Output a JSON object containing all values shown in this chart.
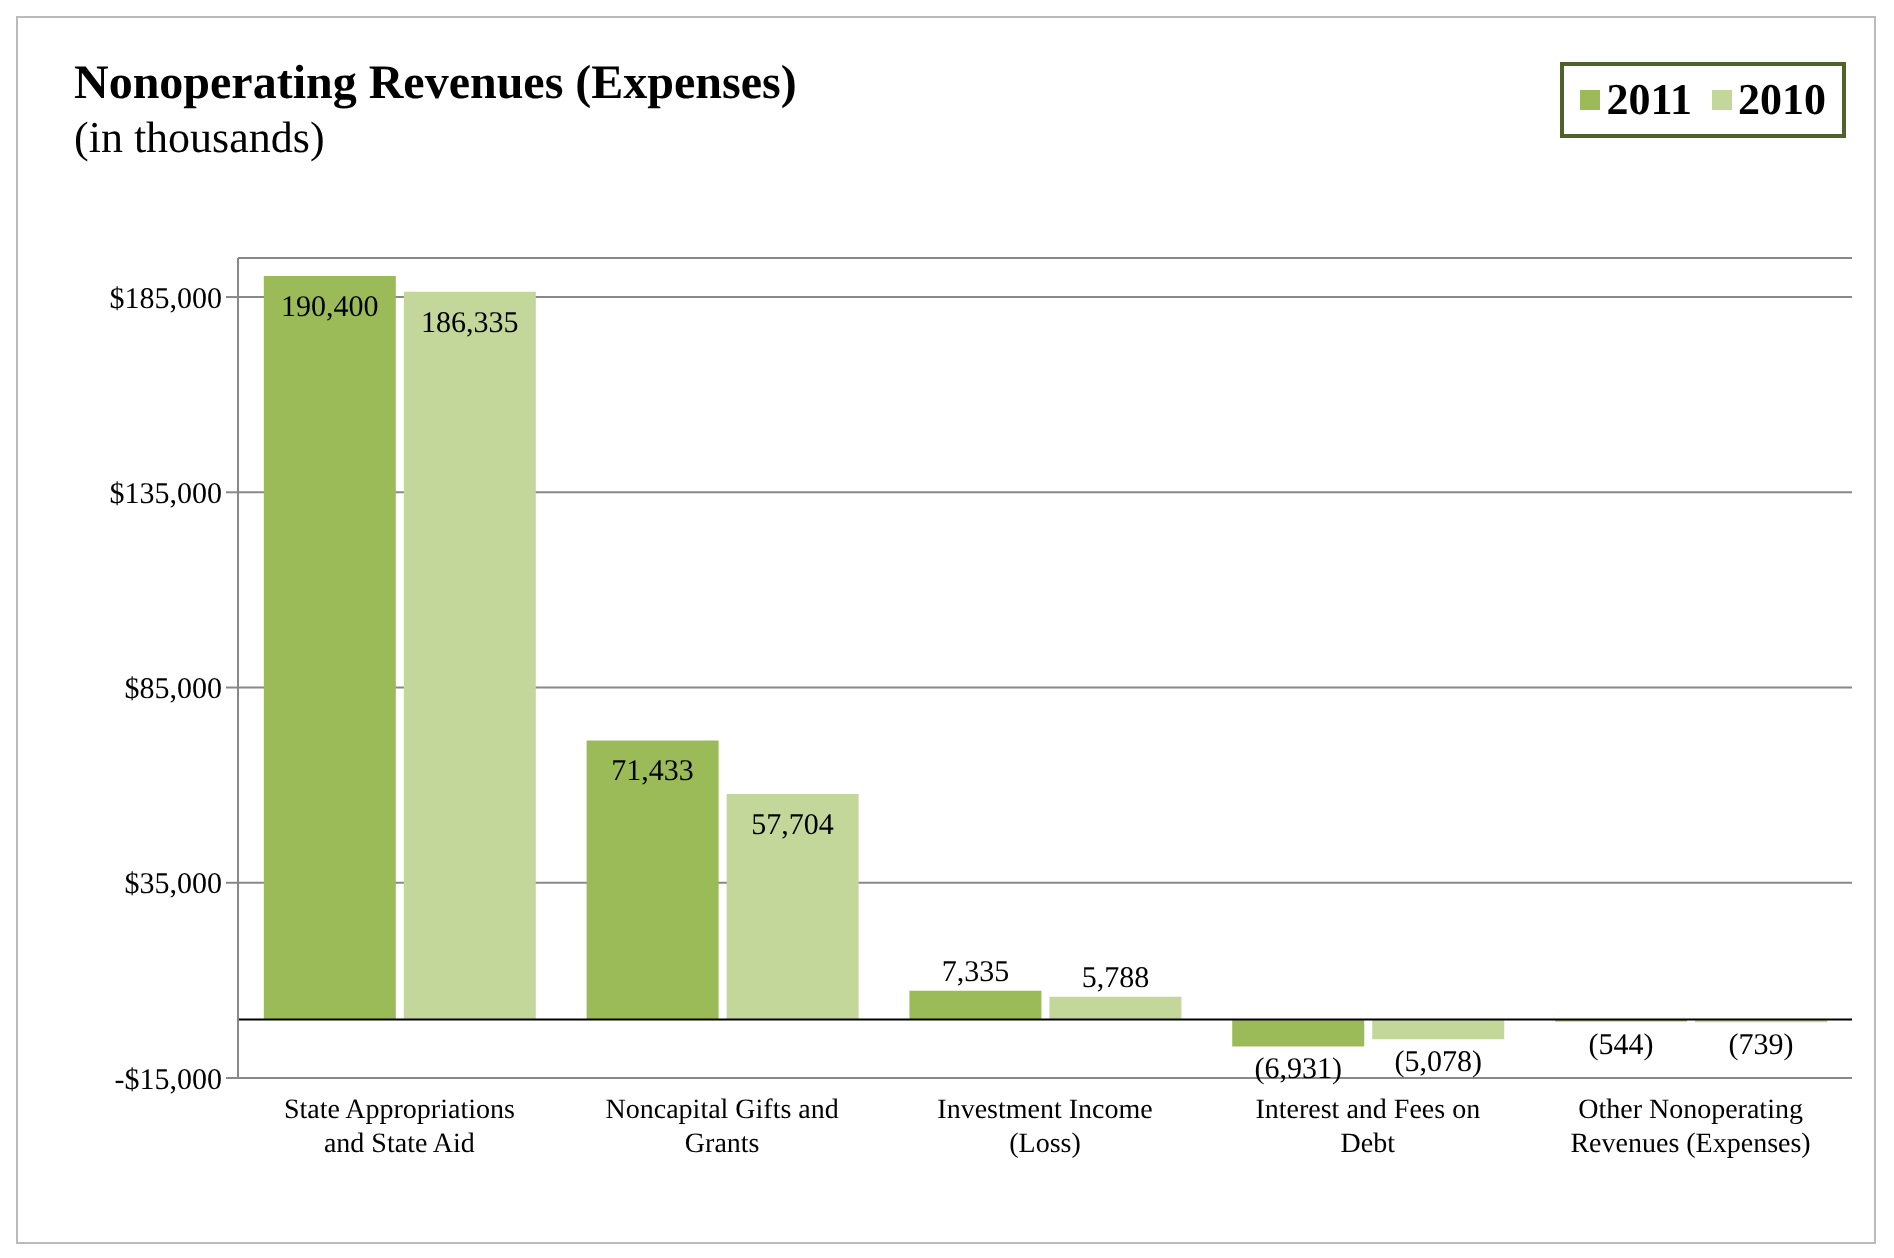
{
  "chart_data": {
    "type": "bar",
    "title": "Nonoperating Revenues (Expenses)",
    "subtitle": "(in thousands)",
    "categories": [
      "State Appropriations and State Aid",
      "Noncapital Gifts and Grants",
      "Investment Income (Loss)",
      "Interest and Fees on Debt",
      "Other Nonoperating Revenues (Expenses)"
    ],
    "series": [
      {
        "name": "2011",
        "color": "#9bbb59",
        "values": [
          190400,
          71433,
          7335,
          -6931,
          -544
        ],
        "value_labels": [
          "190,400",
          "71,433",
          "7,335",
          "(6,931)",
          "(544)"
        ]
      },
      {
        "name": "2010",
        "color": "#c4d79b",
        "values": [
          186335,
          57704,
          5788,
          -5078,
          -739
        ],
        "value_labels": [
          "186,335",
          "57,704",
          "5,788",
          "(5,078)",
          "(739)"
        ]
      }
    ],
    "ylim": [
      -15000,
      195000
    ],
    "yticks": [
      {
        "value": -15000,
        "label": "-$15,000"
      },
      {
        "value": 35000,
        "label": "$35,000"
      },
      {
        "value": 85000,
        "label": "$85,000"
      },
      {
        "value": 135000,
        "label": "$135,000"
      },
      {
        "value": 185000,
        "label": "$185,000"
      }
    ],
    "ref_lines": [
      {
        "axis": "y",
        "value": 0,
        "color": "#000000"
      }
    ],
    "grid": "y",
    "legend": "top right"
  }
}
